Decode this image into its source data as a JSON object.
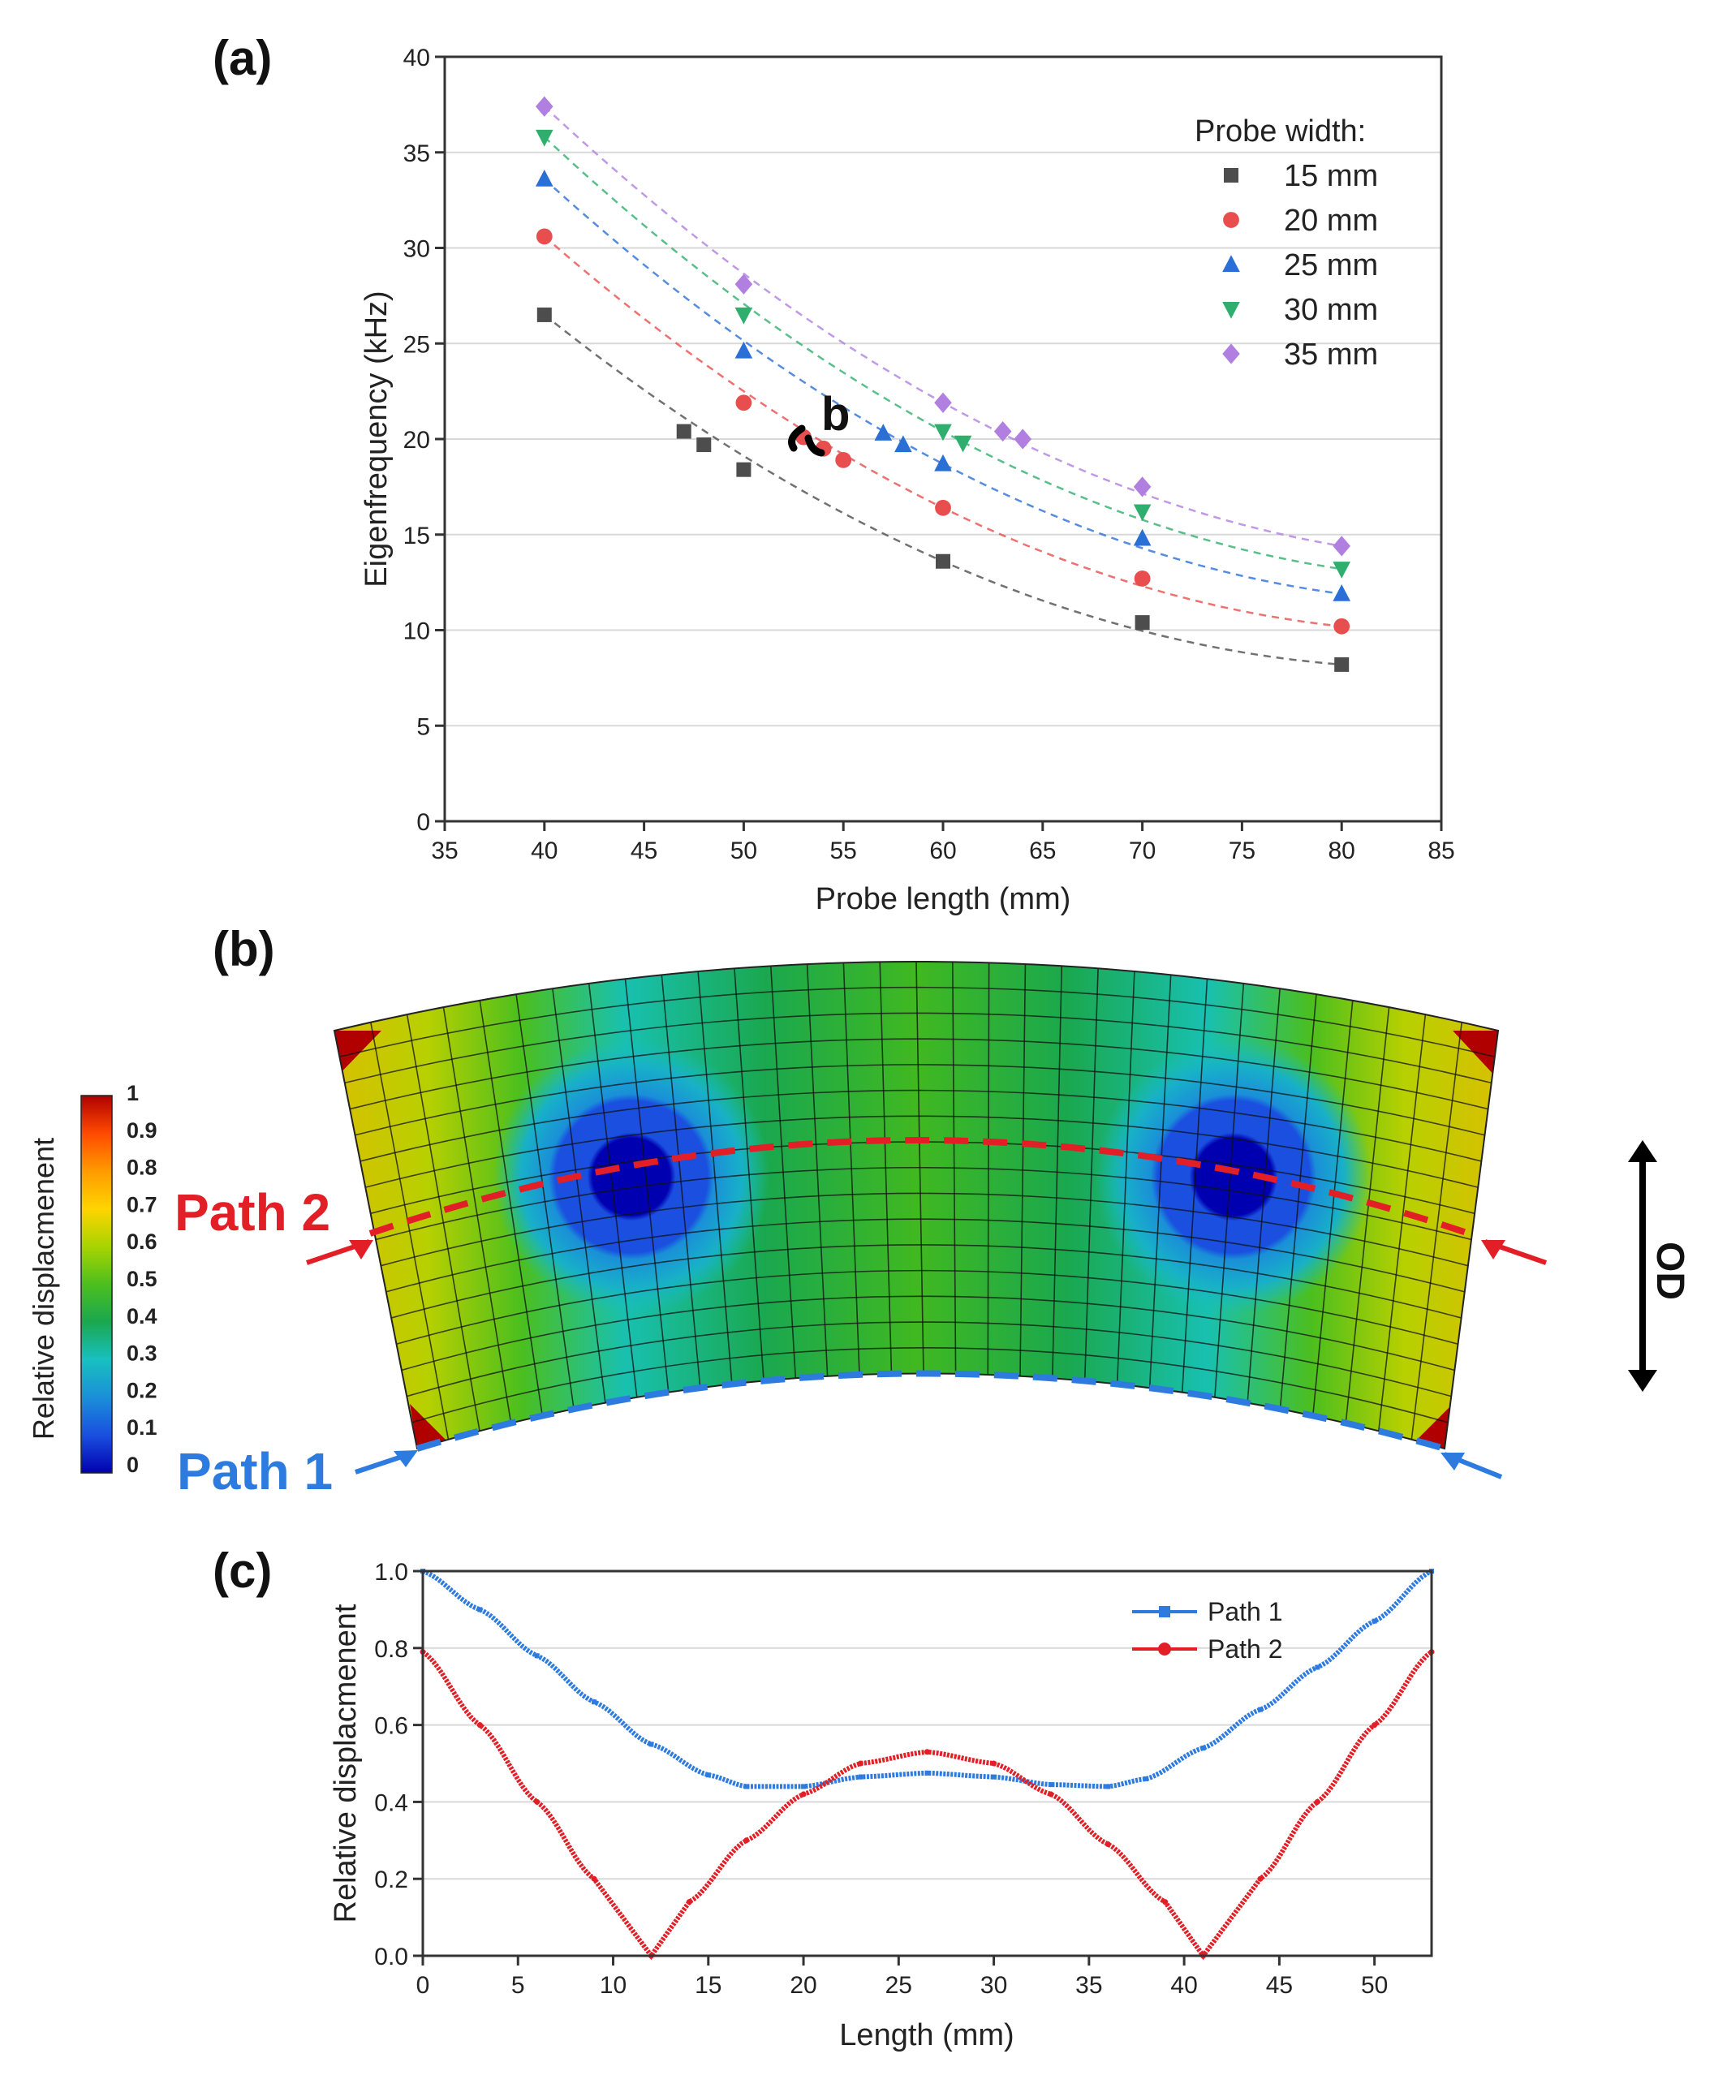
{
  "colors": {
    "gray": "#4d4d4d",
    "red": "#e84e4e",
    "blue": "#2a6fd6",
    "green": "#2fae6d",
    "purple": "#b07fe0",
    "path1": "#2e7be0",
    "path2": "#e21f26"
  },
  "chart_data": [
    {
      "panel": "(a)",
      "type": "scatter",
      "xlabel": "Probe length (mm)",
      "ylabel": "Eigenfrequency (kHz)",
      "xlim": [
        35,
        85
      ],
      "ylim": [
        0,
        40
      ],
      "xticks": [
        "35",
        "40",
        "45",
        "50",
        "55",
        "60",
        "65",
        "70",
        "75",
        "80",
        "85"
      ],
      "yticks": [
        "0",
        "5",
        "10",
        "15",
        "20",
        "25",
        "30",
        "35",
        "40"
      ],
      "grid": "horizontal",
      "legend_title": "Probe width:",
      "legend_position": "top-right",
      "annotation": "b",
      "annotation_point": [
        53.5,
        20.0
      ],
      "series": [
        {
          "name": "15 mm",
          "marker": "square",
          "color": "#4d4d4d",
          "points": [
            [
              40,
              26.5
            ],
            [
              47,
              20.4
            ],
            [
              48,
              19.7
            ],
            [
              50,
              18.4
            ],
            [
              60,
              13.6
            ],
            [
              70,
              10.4
            ],
            [
              80,
              8.2
            ]
          ],
          "fit_anchor": [
            [
              40,
              26.5
            ],
            [
              60,
              13.6
            ],
            [
              80,
              8.2
            ]
          ]
        },
        {
          "name": "20 mm",
          "marker": "circle",
          "color": "#e84e4e",
          "points": [
            [
              40,
              30.6
            ],
            [
              50,
              21.9
            ],
            [
              53,
              20.1
            ],
            [
              54,
              19.5
            ],
            [
              55,
              18.9
            ],
            [
              60,
              16.4
            ],
            [
              70,
              12.7
            ],
            [
              80,
              10.2
            ]
          ],
          "fit_anchor": [
            [
              40,
              30.6
            ],
            [
              60,
              16.4
            ],
            [
              80,
              10.2
            ]
          ]
        },
        {
          "name": "25 mm",
          "marker": "triangle-up",
          "color": "#2a6fd6",
          "points": [
            [
              40,
              33.6
            ],
            [
              50,
              24.6
            ],
            [
              57,
              20.3
            ],
            [
              58,
              19.7
            ],
            [
              60,
              18.7
            ],
            [
              70,
              14.8
            ],
            [
              80,
              11.9
            ]
          ],
          "fit_anchor": [
            [
              40,
              33.6
            ],
            [
              60,
              18.7
            ],
            [
              80,
              11.9
            ]
          ]
        },
        {
          "name": "30 mm",
          "marker": "triangle-down",
          "color": "#2fae6d",
          "points": [
            [
              40,
              35.8
            ],
            [
              50,
              26.5
            ],
            [
              60,
              20.4
            ],
            [
              61,
              19.8
            ],
            [
              70,
              16.2
            ],
            [
              80,
              13.2
            ]
          ],
          "fit_anchor": [
            [
              40,
              35.8
            ],
            [
              60,
              20.4
            ],
            [
              80,
              13.2
            ]
          ]
        },
        {
          "name": "35 mm",
          "marker": "diamond",
          "color": "#b07fe0",
          "points": [
            [
              40,
              37.4
            ],
            [
              50,
              28.1
            ],
            [
              60,
              21.9
            ],
            [
              63,
              20.4
            ],
            [
              64,
              20.0
            ],
            [
              70,
              17.5
            ],
            [
              80,
              14.4
            ]
          ],
          "fit_anchor": [
            [
              40,
              37.4
            ],
            [
              60,
              21.9
            ],
            [
              80,
              14.4
            ]
          ]
        }
      ]
    },
    {
      "panel": "(b)",
      "type": "heatmap",
      "colorbar_label": "Relative displacmenent",
      "colorbar_ticks": [
        "1",
        "0.9",
        "0.8",
        "0.7",
        "0.6",
        "0.5",
        "0.4",
        "0.3",
        "0.2",
        "0.1",
        "0"
      ],
      "colorbar_colors": [
        "#b00000",
        "#ff4a00",
        "#ff9a00",
        "#ffd400",
        "#e6e600",
        "#a8d400",
        "#4cbf1e",
        "#1aa84f",
        "#18c0c0",
        "#1a8fd8",
        "#1a4fe0",
        "#0000b0"
      ],
      "path_labels": [
        "Path 2",
        "Path 1"
      ],
      "direction_label": "OD"
    },
    {
      "panel": "(c)",
      "type": "line",
      "xlabel": "Length (mm)",
      "ylabel": "Relative displacmenent",
      "xlim": [
        0,
        53
      ],
      "ylim": [
        0,
        1.0
      ],
      "xticks": [
        "0",
        "5",
        "10",
        "15",
        "20",
        "25",
        "30",
        "35",
        "40",
        "45",
        "50"
      ],
      "yticks": [
        "0.0",
        "0.2",
        "0.4",
        "0.6",
        "0.8",
        "1.0"
      ],
      "legend_position": "top-right",
      "series": [
        {
          "name": "Path 1",
          "color": "#2e7be0",
          "x": [
            0,
            3,
            6,
            9,
            12,
            15,
            17,
            20,
            23,
            26.5,
            30,
            33,
            36,
            38,
            41,
            44,
            47,
            50,
            53
          ],
          "y": [
            1.0,
            0.9,
            0.78,
            0.66,
            0.55,
            0.47,
            0.44,
            0.44,
            0.465,
            0.475,
            0.465,
            0.445,
            0.44,
            0.46,
            0.54,
            0.64,
            0.75,
            0.87,
            1.0
          ]
        },
        {
          "name": "Path 2",
          "color": "#e21f26",
          "x": [
            0,
            3,
            6,
            9,
            12,
            14,
            17,
            20,
            23,
            26.5,
            30,
            33,
            36,
            39,
            41,
            44,
            47,
            50,
            53
          ],
          "y": [
            0.79,
            0.6,
            0.4,
            0.2,
            0.0,
            0.14,
            0.3,
            0.42,
            0.5,
            0.53,
            0.5,
            0.42,
            0.29,
            0.14,
            0.0,
            0.2,
            0.4,
            0.6,
            0.79
          ]
        }
      ]
    }
  ]
}
